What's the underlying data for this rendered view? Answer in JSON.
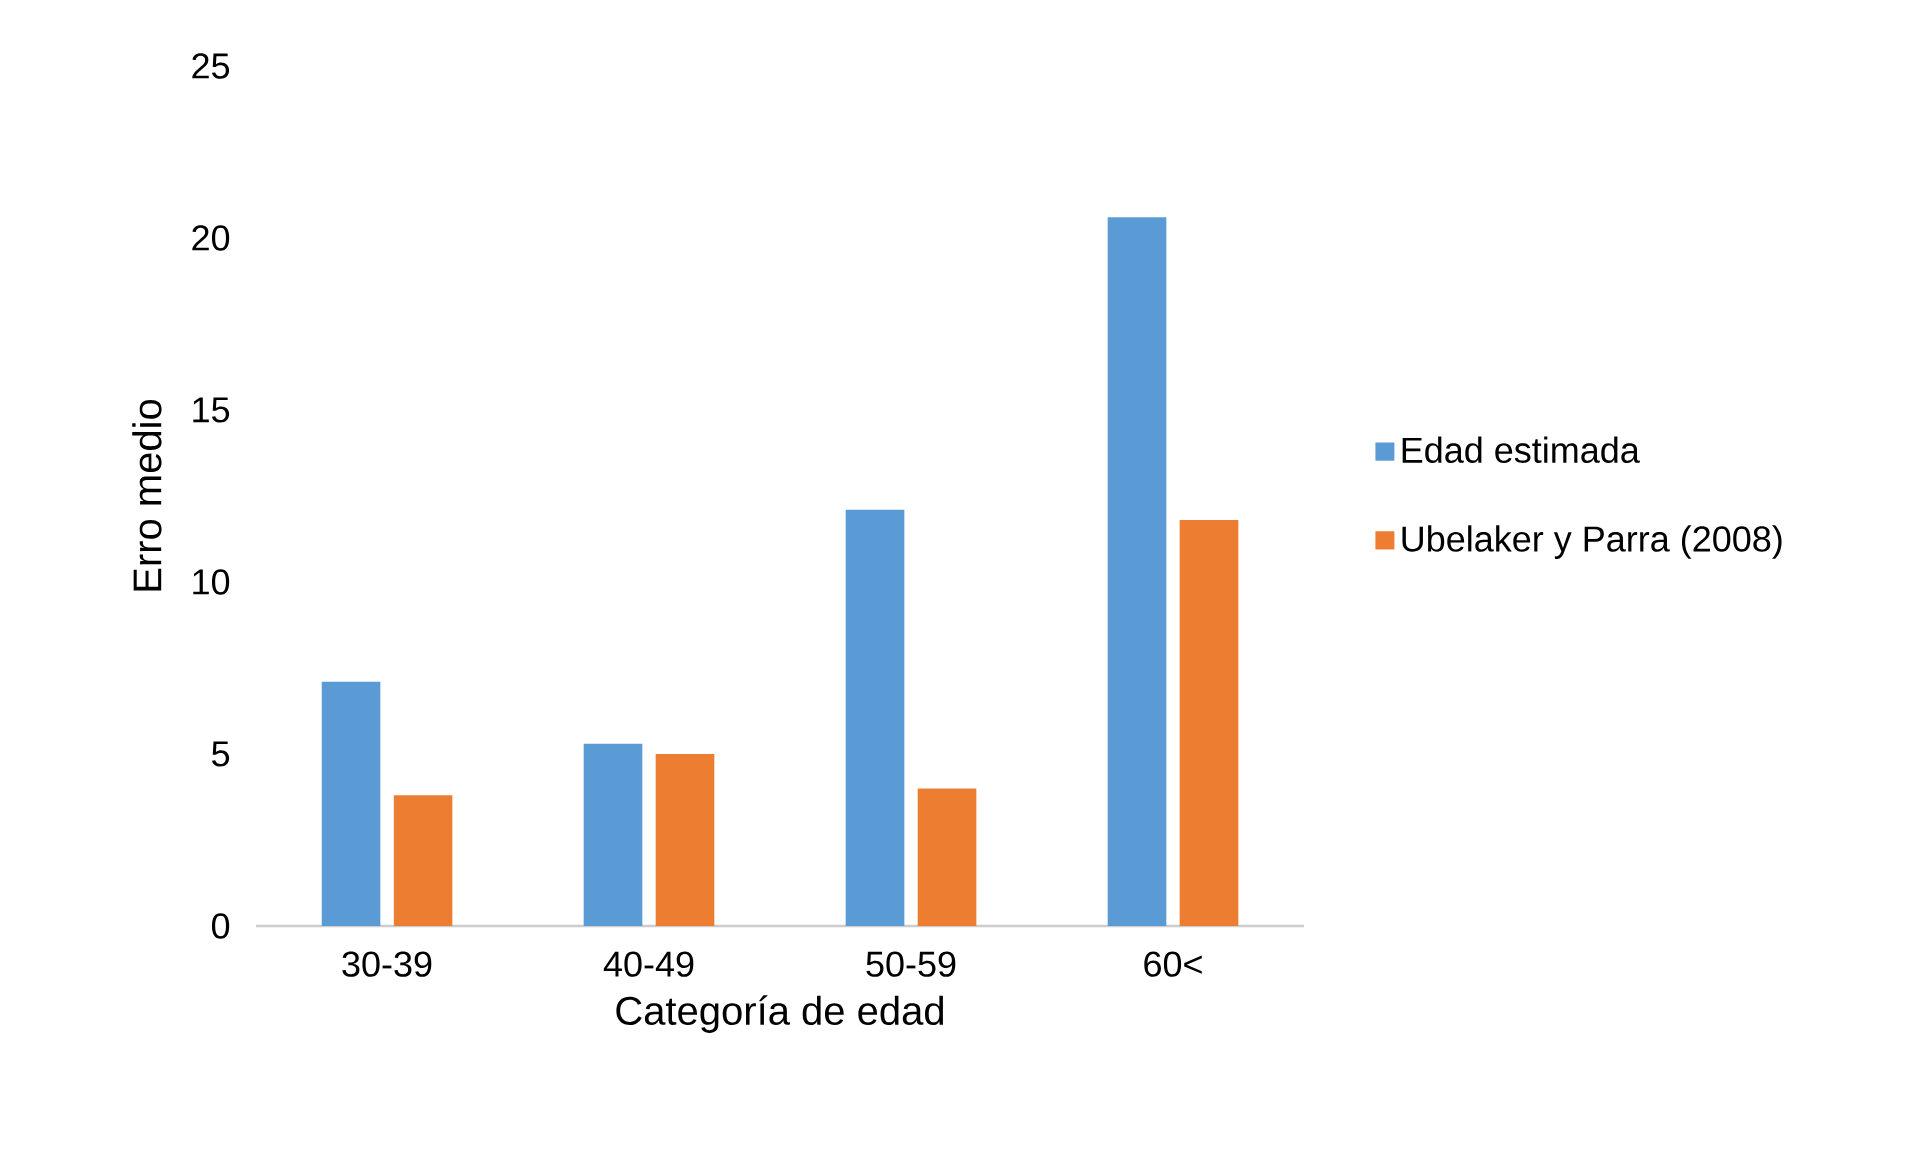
{
  "chart_data": {
    "type": "bar",
    "xlabel": "Categoría de edad",
    "ylabel": "Erro medio",
    "categories": [
      "30-39",
      "40-49",
      "50-59",
      "60<"
    ],
    "series": [
      {
        "name": "Edad estimada",
        "color": "#5b9bd5",
        "values": [
          7.1,
          5.3,
          12.1,
          20.6
        ]
      },
      {
        "name": "Ubelaker y Parra (2008)",
        "color": "#ed7d31",
        "values": [
          3.8,
          5.0,
          4.0,
          11.8
        ]
      }
    ],
    "ylim": [
      0,
      25
    ],
    "yticks": [
      0,
      5,
      10,
      15,
      20,
      25
    ],
    "legend": "right"
  }
}
